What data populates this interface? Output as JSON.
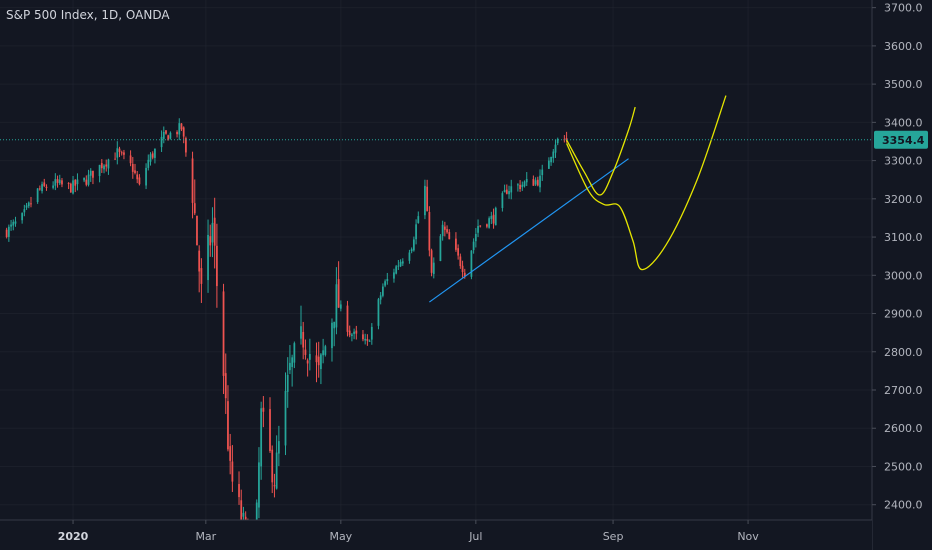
{
  "header": {
    "title": "S&P 500 Index, 1D, OANDA"
  },
  "colors": {
    "background": "#131722",
    "up": "#26a69a",
    "down": "#ef5350",
    "trendline": "#2196f3",
    "drawing": "#e5e500",
    "price_line": "#26a69a",
    "axis_text": "#b2b5be",
    "grid": "#2a2e39"
  },
  "chart_data": {
    "type": "candlestick",
    "instrument": "S&P 500 Index",
    "timeframe": "1D",
    "source": "OANDA",
    "ylim": [
      2360,
      3720
    ],
    "y_ticks": [
      2400,
      2500,
      2600,
      2700,
      2800,
      2900,
      3000,
      3100,
      3200,
      3300,
      3400,
      3500,
      3600,
      3700
    ],
    "y_tick_labels": [
      "2400.0",
      "2500.0",
      "2600.0",
      "2700.0",
      "2800.0",
      "2900.0",
      "3000.0",
      "3100.0",
      "3200.0",
      "3300.0",
      "3400.0",
      "3500.0",
      "3600.0",
      "3700.0"
    ],
    "x_ticks": [
      {
        "label": "2020",
        "date": "2020-01-01",
        "bold": true
      },
      {
        "label": "Mar",
        "date": "2020-03-01",
        "bold": false
      },
      {
        "label": "May",
        "date": "2020-05-01",
        "bold": false
      },
      {
        "label": "Jul",
        "date": "2020-07-01",
        "bold": false
      },
      {
        "label": "Sep",
        "date": "2020-09-01",
        "bold": false
      },
      {
        "label": "Nov",
        "date": "2020-11-01",
        "bold": false
      }
    ],
    "last_price": {
      "value": 3354.4,
      "label": "3354.4"
    },
    "close_path": [
      [
        "2019-12-02",
        3115
      ],
      [
        "2019-12-09",
        3150
      ],
      [
        "2019-12-16",
        3220
      ],
      [
        "2019-12-23",
        3240
      ],
      [
        "2019-12-31",
        3230
      ],
      [
        "2020-01-07",
        3250
      ],
      [
        "2020-01-14",
        3290
      ],
      [
        "2020-01-21",
        3320
      ],
      [
        "2020-01-28",
        3280
      ],
      [
        "2020-01-31",
        3230
      ],
      [
        "2020-02-04",
        3300
      ],
      [
        "2020-02-11",
        3360
      ],
      [
        "2020-02-19",
        3385
      ],
      [
        "2020-02-24",
        3225
      ],
      [
        "2020-02-28",
        2950
      ],
      [
        "2020-03-04",
        3130
      ],
      [
        "2020-03-09",
        2750
      ],
      [
        "2020-03-12",
        2480
      ],
      [
        "2020-03-16",
        2390
      ],
      [
        "2020-03-23",
        2240
      ],
      [
        "2020-03-26",
        2630
      ],
      [
        "2020-04-01",
        2470
      ],
      [
        "2020-04-08",
        2750
      ],
      [
        "2020-04-14",
        2840
      ],
      [
        "2020-04-21",
        2740
      ],
      [
        "2020-04-29",
        2940
      ],
      [
        "2020-05-05",
        2850
      ],
      [
        "2020-05-13",
        2820
      ],
      [
        "2020-05-20",
        2970
      ],
      [
        "2020-05-27",
        3030
      ],
      [
        "2020-06-02",
        3080
      ],
      [
        "2020-06-08",
        3230
      ],
      [
        "2020-06-11",
        3000
      ],
      [
        "2020-06-16",
        3125
      ],
      [
        "2020-06-26",
        3010
      ],
      [
        "2020-07-02",
        3130
      ],
      [
        "2020-07-09",
        3150
      ],
      [
        "2020-07-15",
        3225
      ],
      [
        "2020-07-23",
        3240
      ],
      [
        "2020-07-30",
        3250
      ],
      [
        "2020-08-06",
        3350
      ],
      [
        "2020-08-11",
        3354.4
      ]
    ],
    "trendline": {
      "start": [
        "2020-06-10",
        2930
      ],
      "end": [
        "2020-09-08",
        3305
      ]
    },
    "projection_paths": [
      [
        [
          "2020-08-11",
          3354
        ],
        [
          "2020-08-19",
          3270
        ],
        [
          "2020-08-26",
          3210
        ],
        [
          "2020-09-01",
          3270
        ],
        [
          "2020-09-08",
          3380
        ],
        [
          "2020-09-11",
          3440
        ]
      ],
      [
        [
          "2020-08-11",
          3345
        ],
        [
          "2020-08-21",
          3220
        ],
        [
          "2020-08-28",
          3185
        ],
        [
          "2020-09-04",
          3180
        ],
        [
          "2020-09-10",
          3090
        ],
        [
          "2020-09-14",
          3015
        ],
        [
          "2020-09-25",
          3080
        ],
        [
          "2020-10-09",
          3250
        ],
        [
          "2020-10-22",
          3470
        ]
      ]
    ]
  }
}
